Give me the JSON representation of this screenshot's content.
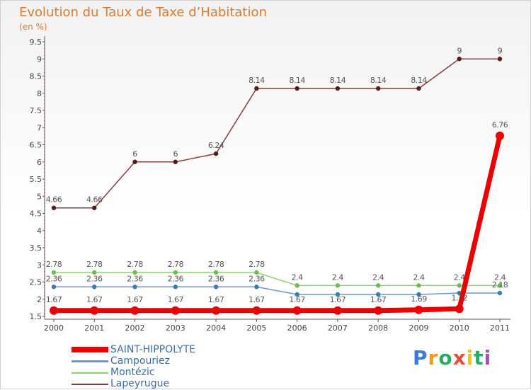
{
  "title": "Evolution du Taux de Taxe d’Habitation",
  "subtitle": "(en %)",
  "brand": {
    "text": "Proxiti",
    "colors": [
      "#3a7bd5",
      "#f39c12",
      "#27ae60",
      "#e74c3c",
      "#f1c40f",
      "#27ae60",
      "#9b59b6"
    ]
  },
  "chart_data": {
    "type": "line",
    "x": [
      "2000",
      "2001",
      "2002",
      "2003",
      "2004",
      "2005",
      "2006",
      "2007",
      "2008",
      "2009",
      "2010",
      "2011"
    ],
    "ylim": [
      1.5,
      9.5
    ],
    "yticks": [
      "1.5",
      "2",
      "2.5",
      "3",
      "3.5",
      "4",
      "4.5",
      "5",
      "5.5",
      "6",
      "6.5",
      "7",
      "7.5",
      "8",
      "8.5",
      "9",
      "9.5"
    ],
    "grid": false,
    "legend_position": "bottom-left",
    "series": [
      {
        "name": "Lapeyrugue",
        "color": "#8b3a3a",
        "marker": "#5a1a1a",
        "values": [
          4.66,
          4.66,
          6,
          6,
          6.24,
          8.14,
          8.14,
          8.14,
          8.14,
          8.14,
          9,
          9
        ],
        "labels": [
          "4.66",
          "4.66",
          "6",
          "6",
          "6.24",
          "8.14",
          "8.14",
          "8.14",
          "8.14",
          "8.14",
          "9",
          "9"
        ]
      },
      {
        "name": "Montézic",
        "color": "#8fd46a",
        "marker": "#6ac04a",
        "values": [
          2.78,
          2.78,
          2.78,
          2.78,
          2.78,
          2.78,
          2.4,
          2.4,
          2.4,
          2.4,
          2.4,
          2.4
        ],
        "labels": [
          "2.78",
          "2.78",
          "2.78",
          "2.78",
          "2.78",
          "2.78",
          "2.4",
          "2.4",
          "2.4",
          "2.4",
          "2.4",
          "2.4"
        ]
      },
      {
        "name": "Campouriez",
        "color": "#6699cc",
        "marker": "#3a7ab5",
        "values": [
          2.36,
          2.36,
          2.36,
          2.36,
          2.36,
          2.36,
          2.14,
          2.14,
          2.14,
          2.14,
          2.18,
          2.18
        ],
        "labels": [
          "2.36",
          "2.36",
          "2.36",
          "2.36",
          "2.36",
          "2.36",
          "",
          "",
          "",
          "",
          "",
          "2.18"
        ]
      },
      {
        "name": "SAINT-HIPPOLYTE",
        "color": "#ee0000",
        "marker": "#ee0000",
        "values": [
          1.67,
          1.67,
          1.67,
          1.67,
          1.67,
          1.67,
          1.67,
          1.67,
          1.67,
          1.69,
          1.72,
          6.76
        ],
        "labels": [
          "1.67",
          "1.67",
          "1.67",
          "1.67",
          "1.67",
          "1.67",
          "1.67",
          "1.67",
          "1.67",
          "1.69",
          "1.72",
          "6.76"
        ]
      }
    ],
    "legend": [
      "SAINT-HIPPOLYTE",
      "Campouriez",
      "Montézic",
      "Lapeyrugue"
    ]
  }
}
